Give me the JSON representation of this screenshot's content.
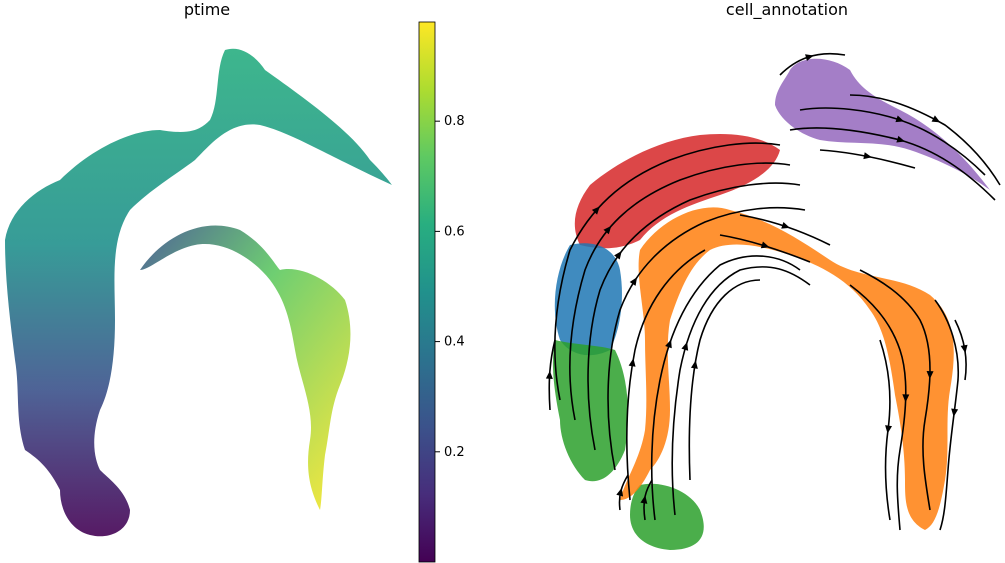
{
  "chart_data": [
    {
      "type": "scatter",
      "title": "ptime",
      "xlabel": "",
      "ylabel": "",
      "colormap": "viridis",
      "colorbar": {
        "range": [
          0.0,
          0.98
        ],
        "ticks": [
          0.2,
          0.4,
          0.6,
          0.8
        ],
        "tick_labels": [
          "0.2",
          "0.4",
          "0.6",
          "0.8"
        ]
      },
      "axes_visible": false,
      "grid": false
    },
    {
      "type": "scatter",
      "title": "cell_annotation",
      "xlabel": "",
      "ylabel": "",
      "overlay": "streamlines",
      "category_colors": [
        "#1f77b4",
        "#2ca02c",
        "#d62728",
        "#ff7f0e",
        "#9467bd"
      ],
      "axes_visible": false,
      "grid": false
    }
  ]
}
